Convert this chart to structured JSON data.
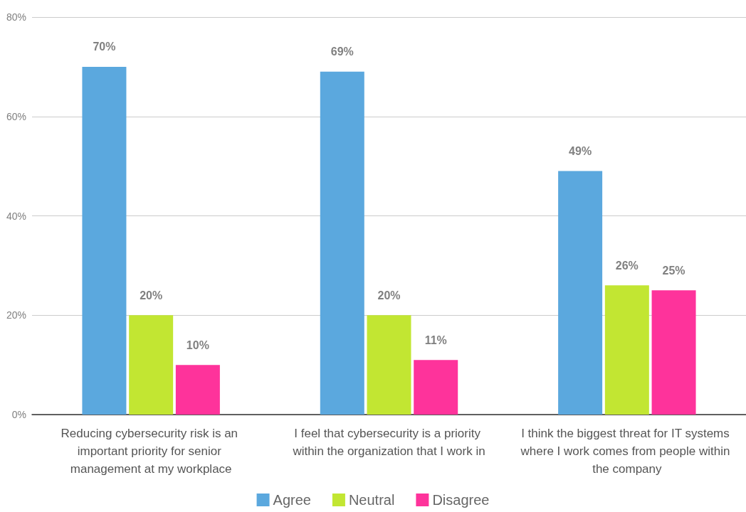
{
  "chart_data": {
    "type": "bar",
    "categories": [
      "Reducing cybersecurity risk is an important priority for senior management at my workplace",
      "I feel that cybersecurity is a priority within the organization that I work in",
      "I think the biggest threat for IT systems where I work comes from people within the company"
    ],
    "series": [
      {
        "name": "Agree",
        "color": "#5ba8de",
        "values": [
          70,
          69,
          49
        ],
        "value_labels": [
          "70%",
          "69%",
          "49%"
        ]
      },
      {
        "name": "Neutral",
        "color": "#c2e632",
        "values": [
          20,
          20,
          26
        ],
        "value_labels": [
          "20%",
          "20%",
          "26%"
        ]
      },
      {
        "name": "Disagree",
        "color": "#fe339b",
        "values": [
          10,
          11,
          25
        ],
        "value_labels": [
          "10%",
          "11%",
          "25%"
        ]
      }
    ],
    "ylim": [
      0,
      80
    ],
    "yticks": [
      {
        "value": 0,
        "label": "0%"
      },
      {
        "value": 20,
        "label": "20%"
      },
      {
        "value": 40,
        "label": "40%"
      },
      {
        "value": 60,
        "label": "60%"
      },
      {
        "value": 80,
        "label": "80%"
      }
    ],
    "grid": "y",
    "legend": "bottom"
  }
}
